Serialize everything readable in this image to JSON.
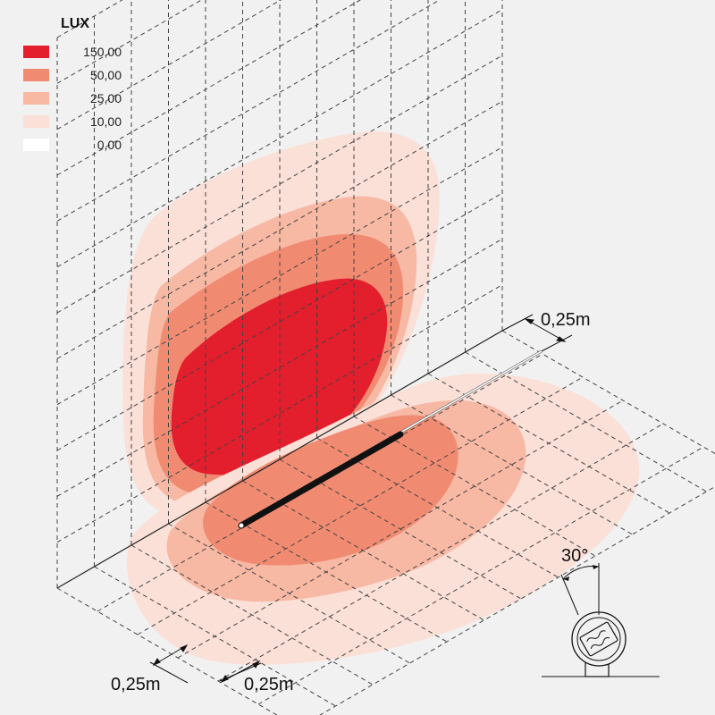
{
  "legend": {
    "title": "LUX",
    "items": [
      {
        "value": "150,00",
        "color": "#e31e2d"
      },
      {
        "value": "50,00",
        "color": "#f08b72"
      },
      {
        "value": "25,00",
        "color": "#f7b8a4"
      },
      {
        "value": "10,00",
        "color": "#fbe0d8"
      },
      {
        "value": "0,00",
        "color": "#ffffff"
      }
    ]
  },
  "dimensions": {
    "right_spacing": "0,25m",
    "bottom_left_spacing": "0,25m",
    "bottom_right_spacing": "0,25m",
    "tilt_angle": "30°"
  },
  "colors": {
    "background": "#f1f1f1",
    "grid": "#444444",
    "fixture": "#111111"
  }
}
